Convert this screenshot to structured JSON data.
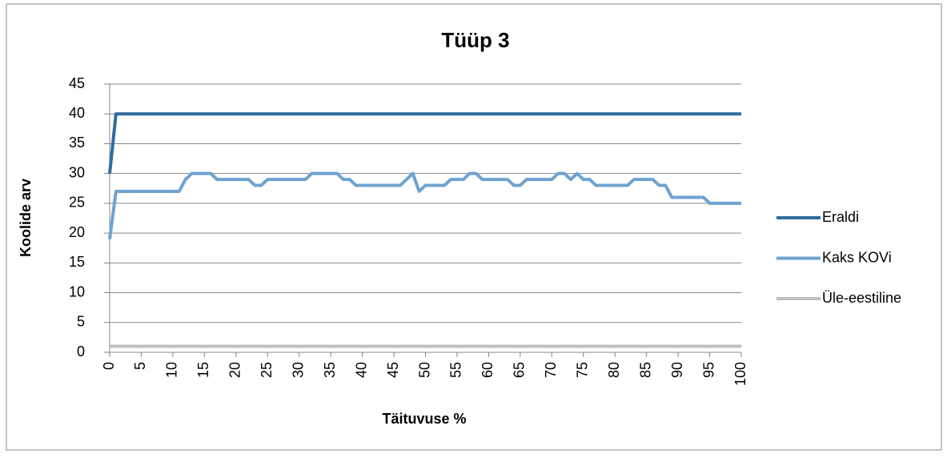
{
  "chart_data": {
    "type": "line",
    "title": "Tüüp 3",
    "x_label": "Täituvuse %",
    "y_label": "Koolide arv",
    "x": [
      0,
      1,
      2,
      3,
      4,
      5,
      6,
      7,
      8,
      9,
      10,
      11,
      12,
      13,
      14,
      15,
      16,
      17,
      18,
      19,
      20,
      21,
      22,
      23,
      24,
      25,
      26,
      27,
      28,
      29,
      30,
      31,
      32,
      33,
      34,
      35,
      36,
      37,
      38,
      39,
      40,
      41,
      42,
      43,
      44,
      45,
      46,
      47,
      48,
      49,
      50,
      51,
      52,
      53,
      54,
      55,
      56,
      57,
      58,
      59,
      60,
      61,
      62,
      63,
      64,
      65,
      66,
      67,
      68,
      69,
      70,
      71,
      72,
      73,
      74,
      75,
      76,
      77,
      78,
      79,
      80,
      81,
      82,
      83,
      84,
      85,
      86,
      87,
      88,
      89,
      90,
      91,
      92,
      93,
      94,
      95,
      96,
      97,
      98,
      99,
      100
    ],
    "series": [
      {
        "name": "Eraldi",
        "color": "#2f6c9e",
        "values": [
          30,
          40,
          40,
          40,
          40,
          40,
          40,
          40,
          40,
          40,
          40,
          40,
          40,
          40,
          40,
          40,
          40,
          40,
          40,
          40,
          40,
          40,
          40,
          40,
          40,
          40,
          40,
          40,
          40,
          40,
          40,
          40,
          40,
          40,
          40,
          40,
          40,
          40,
          40,
          40,
          40,
          40,
          40,
          40,
          40,
          40,
          40,
          40,
          40,
          40,
          40,
          40,
          40,
          40,
          40,
          40,
          40,
          40,
          40,
          40,
          40,
          40,
          40,
          40,
          40,
          40,
          40,
          40,
          40,
          40,
          40,
          40,
          40,
          40,
          40,
          40,
          40,
          40,
          40,
          40,
          40,
          40,
          40,
          40,
          40,
          40,
          40,
          40,
          40,
          40,
          40,
          40,
          40,
          40,
          40,
          40,
          40,
          40,
          40,
          40,
          40
        ]
      },
      {
        "name": "Kaks KOVi",
        "color": "#6fa3cf",
        "values": [
          19,
          27,
          27,
          27,
          27,
          27,
          27,
          27,
          27,
          27,
          27,
          27,
          29,
          30,
          30,
          30,
          30,
          29,
          29,
          29,
          29,
          29,
          29,
          28,
          28,
          29,
          29,
          29,
          29,
          29,
          29,
          29,
          30,
          30,
          30,
          30,
          30,
          29,
          29,
          28,
          28,
          28,
          28,
          28,
          28,
          28,
          28,
          29,
          30,
          27,
          28,
          28,
          28,
          28,
          29,
          29,
          29,
          30,
          30,
          29,
          29,
          29,
          29,
          29,
          28,
          28,
          29,
          29,
          29,
          29,
          29,
          30,
          30,
          29,
          30,
          29,
          29,
          28,
          28,
          28,
          28,
          28,
          28,
          29,
          29,
          29,
          29,
          28,
          28,
          26,
          26,
          26,
          26,
          26,
          26,
          25,
          25,
          25,
          25,
          25,
          25
        ]
      },
      {
        "name": "Üle-eestiline",
        "color": "#bfbfbf",
        "values": [
          1,
          1,
          1,
          1,
          1,
          1,
          1,
          1,
          1,
          1,
          1,
          1,
          1,
          1,
          1,
          1,
          1,
          1,
          1,
          1,
          1,
          1,
          1,
          1,
          1,
          1,
          1,
          1,
          1,
          1,
          1,
          1,
          1,
          1,
          1,
          1,
          1,
          1,
          1,
          1,
          1,
          1,
          1,
          1,
          1,
          1,
          1,
          1,
          1,
          1,
          1,
          1,
          1,
          1,
          1,
          1,
          1,
          1,
          1,
          1,
          1,
          1,
          1,
          1,
          1,
          1,
          1,
          1,
          1,
          1,
          1,
          1,
          1,
          1,
          1,
          1,
          1,
          1,
          1,
          1,
          1,
          1,
          1,
          1,
          1,
          1,
          1,
          1,
          1,
          1,
          1,
          1,
          1,
          1,
          1,
          1,
          1,
          1,
          1,
          1,
          1
        ]
      }
    ],
    "xlim": [
      0,
      100
    ],
    "xticks": [
      0,
      5,
      10,
      15,
      20,
      25,
      30,
      35,
      40,
      45,
      50,
      55,
      60,
      65,
      70,
      75,
      80,
      85,
      90,
      95,
      100
    ],
    "ylim": [
      0,
      45
    ],
    "yticks": [
      0,
      5,
      10,
      15,
      20,
      25,
      30,
      35,
      40,
      45
    ],
    "grid": true,
    "legend": "right"
  }
}
